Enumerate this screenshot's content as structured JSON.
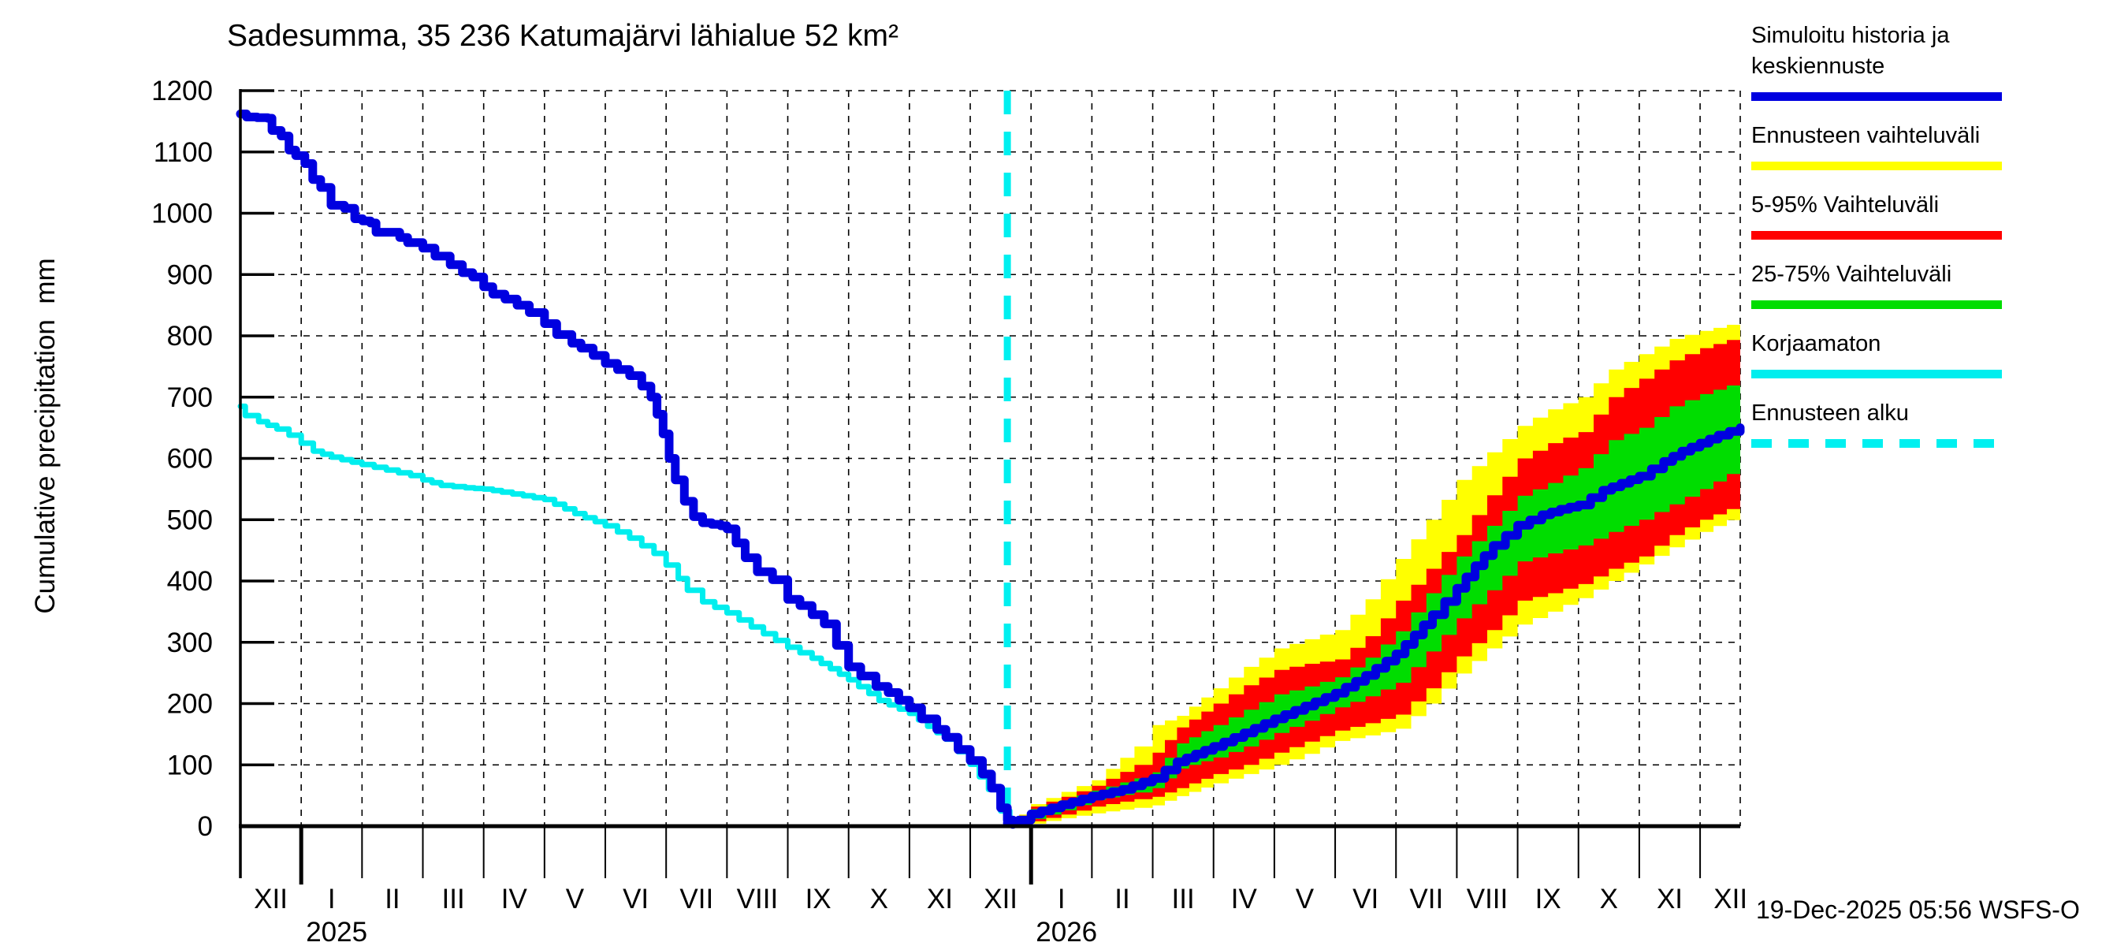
{
  "title": "Sadesumma, 35 236 Katumajärvi lähialue 52 km²",
  "y_axis": {
    "label": "Cumulative precipitation  mm",
    "ticks": [
      0,
      100,
      200,
      300,
      400,
      500,
      600,
      700,
      800,
      900,
      1000,
      1100,
      1200
    ]
  },
  "x_axis": {
    "month_labels": [
      "XII",
      "I",
      "II",
      "III",
      "IV",
      "V",
      "VI",
      "VII",
      "VIII",
      "IX",
      "X",
      "XI",
      "XII",
      "I",
      "II",
      "III",
      "IV",
      "V",
      "VI",
      "VII",
      "VIII",
      "IX",
      "X",
      "XI",
      "XII"
    ],
    "year_labels": [
      {
        "text": "2025",
        "month_index": 1
      },
      {
        "text": "2026",
        "month_index": 13
      }
    ]
  },
  "legend": {
    "items": [
      {
        "label": "Simuloitu historia ja keskiennuste",
        "color": "#0000e0",
        "style": "solid"
      },
      {
        "label": "Ennusteen vaihteluväli",
        "color": "#ffff00",
        "style": "solid"
      },
      {
        "label": "5-95% Vaihteluväli",
        "color": "#ff0000",
        "style": "solid"
      },
      {
        "label": "25-75% Vaihteluväli",
        "color": "#00dd00",
        "style": "solid"
      },
      {
        "label": "Korjaamaton",
        "color": "#00eeee",
        "style": "solid"
      },
      {
        "label": "Ennusteen alku",
        "color": "#00f0f0",
        "style": "dashed"
      }
    ]
  },
  "footer": {
    "timestamp": "19-Dec-2025 05:56 WSFS-O"
  },
  "colors": {
    "blue": "#0000e0",
    "cyan": "#00eeee",
    "forecast_line": "#00f0f0",
    "yellow": "#ffff00",
    "red": "#ff0000",
    "green": "#00dd00",
    "grid": "#000000",
    "background": "#ffffff"
  },
  "chart_data": {
    "type": "line",
    "title": "Sadesumma, 35 236 Katumajärvi lähialue 52 km²",
    "xlabel": "",
    "ylabel": "Cumulative precipitation  mm",
    "ylim": [
      0,
      1200
    ],
    "x_unit": "months since 1 Dec 2024",
    "x_range": [
      0,
      24.66
    ],
    "grid": true,
    "legend_position": "outside-right",
    "forecast_start_m": 12.61,
    "series": [
      {
        "name": "Simuloitu historia ja keskiennuste (historia)",
        "color": "#0000e0",
        "width": 11,
        "points": [
          [
            0,
            1162
          ],
          [
            0.1,
            1157
          ],
          [
            0.45,
            1155
          ],
          [
            0.52,
            1135
          ],
          [
            0.67,
            1126
          ],
          [
            0.8,
            1103
          ],
          [
            0.91,
            1094
          ],
          [
            1.06,
            1081
          ],
          [
            1.19,
            1055
          ],
          [
            1.32,
            1042
          ],
          [
            1.49,
            1013
          ],
          [
            1.71,
            1008
          ],
          [
            1.88,
            991
          ],
          [
            2.14,
            984
          ],
          [
            2.23,
            969
          ],
          [
            2.49,
            969
          ],
          [
            2.75,
            952
          ],
          [
            3.0,
            943
          ],
          [
            3.2,
            930
          ],
          [
            3.45,
            916
          ],
          [
            3.65,
            903
          ],
          [
            3.82,
            896
          ],
          [
            4.0,
            880
          ],
          [
            4.15,
            868
          ],
          [
            4.35,
            860
          ],
          [
            4.55,
            850
          ],
          [
            4.75,
            838
          ],
          [
            5.0,
            820
          ],
          [
            5.2,
            802
          ],
          [
            5.45,
            788
          ],
          [
            5.6,
            780
          ],
          [
            5.8,
            768
          ],
          [
            6.0,
            755
          ],
          [
            6.2,
            745
          ],
          [
            6.4,
            735
          ],
          [
            6.6,
            718
          ],
          [
            6.75,
            700
          ],
          [
            6.85,
            672
          ],
          [
            6.95,
            640
          ],
          [
            7.05,
            600
          ],
          [
            7.15,
            565
          ],
          [
            7.3,
            530
          ],
          [
            7.45,
            505
          ],
          [
            7.6,
            495
          ],
          [
            7.9,
            490
          ],
          [
            8.0,
            485
          ],
          [
            8.15,
            462
          ],
          [
            8.3,
            438
          ],
          [
            8.5,
            415
          ],
          [
            8.75,
            402
          ],
          [
            9.0,
            370
          ],
          [
            9.2,
            360
          ],
          [
            9.4,
            345
          ],
          [
            9.6,
            330
          ],
          [
            9.8,
            295
          ],
          [
            10.0,
            260
          ],
          [
            10.2,
            245
          ],
          [
            10.45,
            228
          ],
          [
            10.65,
            218
          ],
          [
            11.0,
            193
          ],
          [
            11.2,
            175
          ],
          [
            11.45,
            158
          ],
          [
            11.6,
            145
          ],
          [
            11.8,
            125
          ],
          [
            12.0,
            107
          ],
          [
            12.2,
            85
          ],
          [
            12.35,
            62
          ],
          [
            12.5,
            30
          ],
          [
            12.61,
            10
          ],
          [
            12.7,
            3
          ]
        ]
      },
      {
        "name": "Korjaamaton",
        "color": "#00eeee",
        "width": 7,
        "points": [
          [
            0,
            685
          ],
          [
            0.08,
            670
          ],
          [
            0.3,
            660
          ],
          [
            0.6,
            648
          ],
          [
            0.8,
            638
          ],
          [
            1.0,
            625
          ],
          [
            1.2,
            612
          ],
          [
            1.5,
            602
          ],
          [
            2.0,
            590
          ],
          [
            2.4,
            581
          ],
          [
            2.8,
            572
          ],
          [
            3.0,
            565
          ],
          [
            3.3,
            556
          ],
          [
            3.7,
            552
          ],
          [
            4.0,
            550
          ],
          [
            4.3,
            545
          ],
          [
            5.0,
            533
          ],
          [
            5.5,
            510
          ],
          [
            6.0,
            490
          ],
          [
            6.4,
            470
          ],
          [
            6.8,
            445
          ],
          [
            7.0,
            426
          ],
          [
            7.2,
            404
          ],
          [
            7.35,
            385
          ],
          [
            7.6,
            366
          ],
          [
            8.0,
            348
          ],
          [
            8.4,
            325
          ],
          [
            8.8,
            303
          ],
          [
            9.0,
            292
          ],
          [
            9.4,
            274
          ],
          [
            9.7,
            257
          ],
          [
            10.0,
            239
          ],
          [
            10.5,
            205
          ],
          [
            11.0,
            184
          ],
          [
            11.6,
            142
          ],
          [
            12.0,
            101
          ],
          [
            12.3,
            60
          ],
          [
            12.5,
            25
          ],
          [
            12.65,
            2
          ]
        ]
      },
      {
        "name": "Keskiennuste",
        "color": "#0000e0",
        "width": 11,
        "points": [
          [
            12.61,
            5
          ],
          [
            12.8,
            10
          ],
          [
            13.0,
            20
          ],
          [
            13.5,
            35
          ],
          [
            14.0,
            49
          ],
          [
            14.5,
            60
          ],
          [
            15.0,
            78
          ],
          [
            15.4,
            105
          ],
          [
            16.0,
            130
          ],
          [
            16.5,
            152
          ],
          [
            17.0,
            175
          ],
          [
            17.5,
            196
          ],
          [
            18.0,
            217
          ],
          [
            18.5,
            246
          ],
          [
            19.0,
            281
          ],
          [
            19.3,
            312
          ],
          [
            19.6,
            345
          ],
          [
            20.0,
            388
          ],
          [
            20.3,
            425
          ],
          [
            20.6,
            458
          ],
          [
            21.0,
            491
          ],
          [
            21.4,
            508
          ],
          [
            21.7,
            517
          ],
          [
            22.0,
            524
          ],
          [
            22.4,
            548
          ],
          [
            23.0,
            571
          ],
          [
            23.4,
            595
          ],
          [
            23.7,
            612
          ],
          [
            24.0,
            625
          ],
          [
            24.3,
            638
          ],
          [
            24.66,
            650
          ]
        ]
      }
    ],
    "bands": {
      "m": [
        12.61,
        13.0,
        13.5,
        14.0,
        14.7,
        15.0,
        15.4,
        16.0,
        16.5,
        17.0,
        17.5,
        18.0,
        18.5,
        19.0,
        19.5,
        20.0,
        20.5,
        21.0,
        21.5,
        22.0,
        22.5,
        23.0,
        23.5,
        24.0,
        24.66
      ],
      "yellow_hi": [
        2,
        36,
        56,
        75,
        130,
        165,
        180,
        225,
        260,
        290,
        305,
        320,
        370,
        436,
        500,
        565,
        610,
        653,
        680,
        700,
        745,
        770,
        795,
        808,
        823
      ],
      "red_hi": [
        2,
        32,
        48,
        66,
        100,
        120,
        161,
        200,
        230,
        255,
        265,
        272,
        310,
        368,
        420,
        475,
        540,
        600,
        625,
        643,
        700,
        730,
        760,
        780,
        800
      ],
      "green_hi": [
        1,
        28,
        42,
        58,
        78,
        88,
        135,
        165,
        190,
        215,
        228,
        243,
        275,
        318,
        380,
        440,
        490,
        539,
        560,
        584,
        630,
        650,
        685,
        705,
        726
      ],
      "green_lo": [
        0,
        12,
        26,
        43,
        55,
        62,
        94,
        112,
        130,
        152,
        172,
        194,
        212,
        234,
        285,
        339,
        385,
        432,
        445,
        458,
        480,
        500,
        525,
        550,
        587
      ],
      "red_lo": [
        0,
        8,
        19,
        32,
        44,
        48,
        62,
        85,
        100,
        120,
        138,
        156,
        168,
        182,
        225,
        277,
        320,
        368,
        380,
        395,
        420,
        440,
        475,
        500,
        526
      ],
      "yellow_lo": [
        0,
        4,
        13,
        21,
        30,
        34,
        49,
        70,
        85,
        100,
        118,
        139,
        148,
        159,
        200,
        249,
        290,
        329,
        350,
        372,
        400,
        427,
        455,
        480,
        509
      ]
    }
  }
}
